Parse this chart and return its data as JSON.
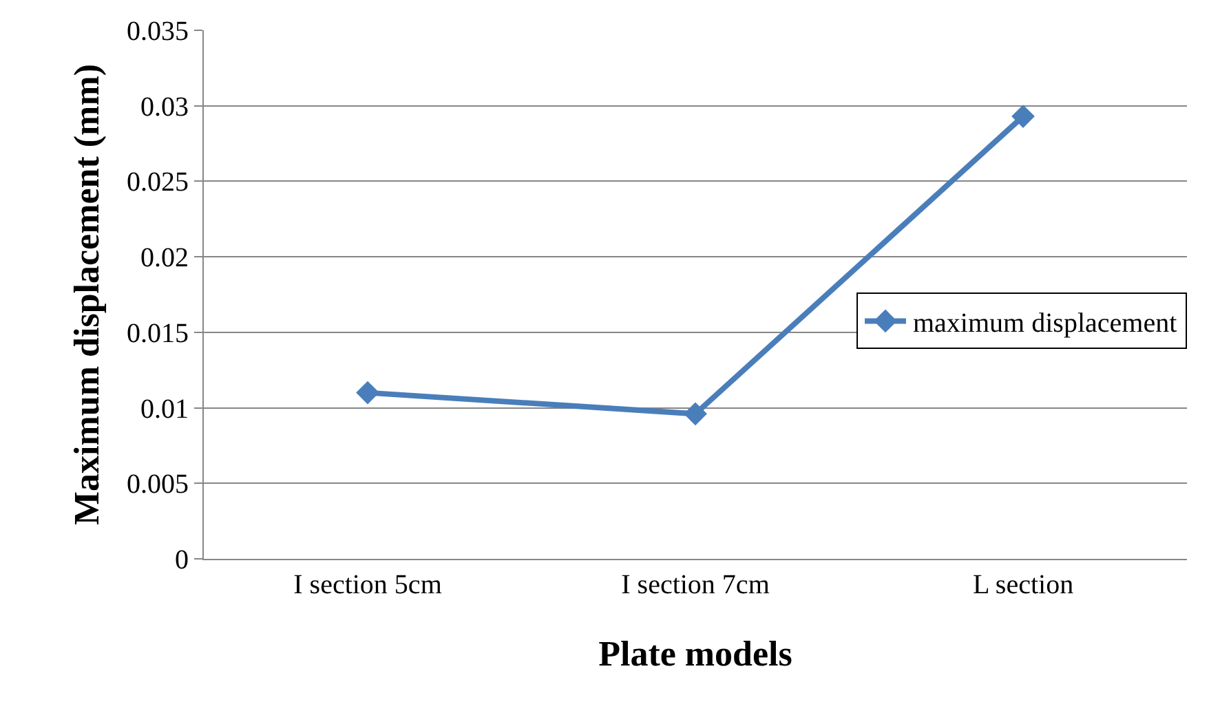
{
  "chart_data": {
    "type": "line",
    "xlabel": "Plate models",
    "ylabel": "Maximum displacement (mm)",
    "categories": [
      "I section 5cm",
      "I section 7cm",
      "L section"
    ],
    "series": [
      {
        "name": "maximum displacement",
        "color": "#4a7ebb",
        "values": [
          0.011,
          0.0096,
          0.0293
        ]
      }
    ],
    "ylim": [
      0,
      0.035
    ],
    "yticks": [
      0,
      0.005,
      0.01,
      0.015,
      0.02,
      0.025,
      0.03,
      0.035
    ],
    "grid": "y",
    "legend": "right",
    "marker": "diamond",
    "line_style": "solid"
  }
}
